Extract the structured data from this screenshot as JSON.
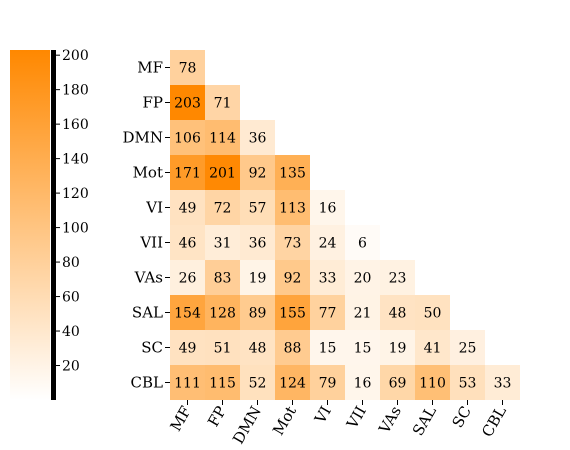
{
  "chart_data": {
    "type": "heatmap",
    "title": "",
    "xlabel": "",
    "ylabel": "",
    "row_labels": [
      "MF",
      "FP",
      "DMN",
      "Mot",
      "VI",
      "VII",
      "VAs",
      "SAL",
      "SC",
      "CBL"
    ],
    "col_labels": [
      "MF",
      "FP",
      "DMN",
      "Mot",
      "VI",
      "VII",
      "VAs",
      "SAL",
      "SC",
      "CBL"
    ],
    "values": [
      [
        78
      ],
      [
        203,
        71
      ],
      [
        106,
        114,
        36
      ],
      [
        171,
        201,
        92,
        135
      ],
      [
        49,
        72,
        57,
        113,
        16
      ],
      [
        46,
        31,
        36,
        73,
        24,
        6
      ],
      [
        26,
        83,
        19,
        92,
        33,
        20,
        23
      ],
      [
        154,
        128,
        89,
        155,
        77,
        21,
        48,
        50
      ],
      [
        49,
        51,
        48,
        88,
        15,
        15,
        19,
        41,
        25
      ],
      [
        111,
        115,
        52,
        124,
        79,
        16,
        69,
        110,
        53,
        33
      ]
    ],
    "mask": "lower-triangle",
    "colorscale": {
      "low": "#ffffff",
      "high": "#ff8800",
      "vmin": 0,
      "vmax": 203
    },
    "colorbar": {
      "position": "left",
      "ticks": [
        20,
        40,
        60,
        80,
        100,
        120,
        140,
        160,
        180,
        200
      ]
    },
    "x_tick_rotation": "60deg"
  }
}
